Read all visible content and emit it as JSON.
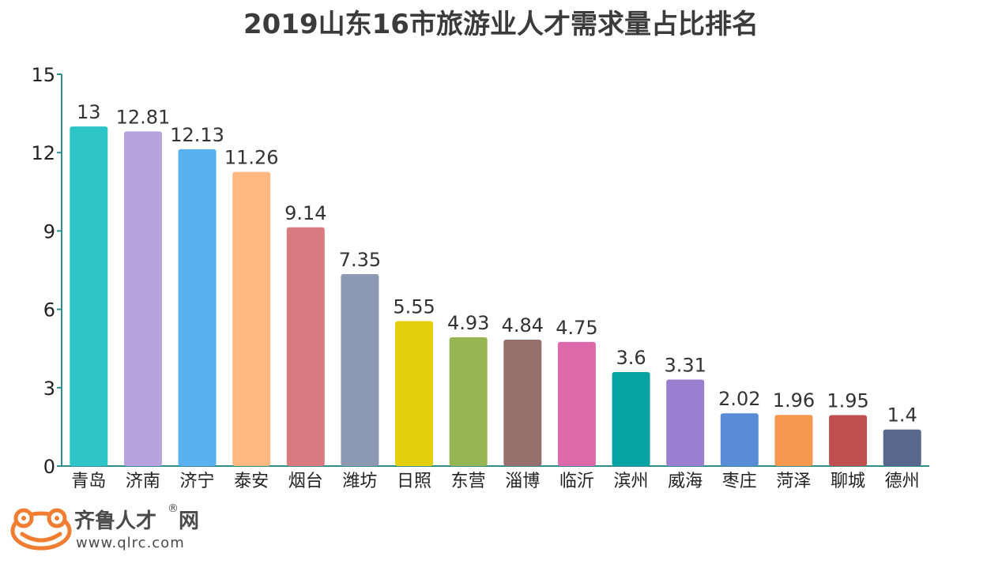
{
  "chart_data": {
    "type": "bar",
    "title": "2019山东16市旅游业人才需求量占比排名",
    "categories": [
      "青岛",
      "济南",
      "济宁",
      "泰安",
      "烟台",
      "潍坊",
      "日照",
      "东营",
      "淄博",
      "临沂",
      "滨州",
      "威海",
      "枣庄",
      "菏泽",
      "聊城",
      "德州"
    ],
    "values": [
      13,
      12.81,
      12.13,
      11.26,
      9.14,
      7.35,
      5.55,
      4.93,
      4.84,
      4.75,
      3.6,
      3.31,
      2.02,
      1.96,
      1.95,
      1.4
    ],
    "value_labels": [
      "13",
      "12.81",
      "12.13",
      "11.26",
      "9.14",
      "7.35",
      "5.55",
      "4.93",
      "4.84",
      "4.75",
      "3.6",
      "3.31",
      "2.02",
      "1.96",
      "1.95",
      "1.4"
    ],
    "colors": [
      "#2ec5c9",
      "#b6a2de",
      "#5ab1ef",
      "#ffb980",
      "#d87a80",
      "#8d98b3",
      "#e5cf0d",
      "#97b552",
      "#95706d",
      "#dc69aa",
      "#07a2a4",
      "#9a7fd1",
      "#588dd5",
      "#f5994e",
      "#c05050",
      "#59678c"
    ],
    "yticks": [
      0,
      3,
      6,
      9,
      12,
      15
    ],
    "ylim": [
      0,
      15
    ],
    "xlabel": "",
    "ylabel": "",
    "grid": false,
    "axis_color": "#2f8f8f"
  },
  "logo": {
    "name": "齐鲁人才",
    "suffix": "网",
    "registered": "®",
    "url": "www.qlrc.com",
    "icon": "frog-logo-icon",
    "color": "#f07d30"
  }
}
